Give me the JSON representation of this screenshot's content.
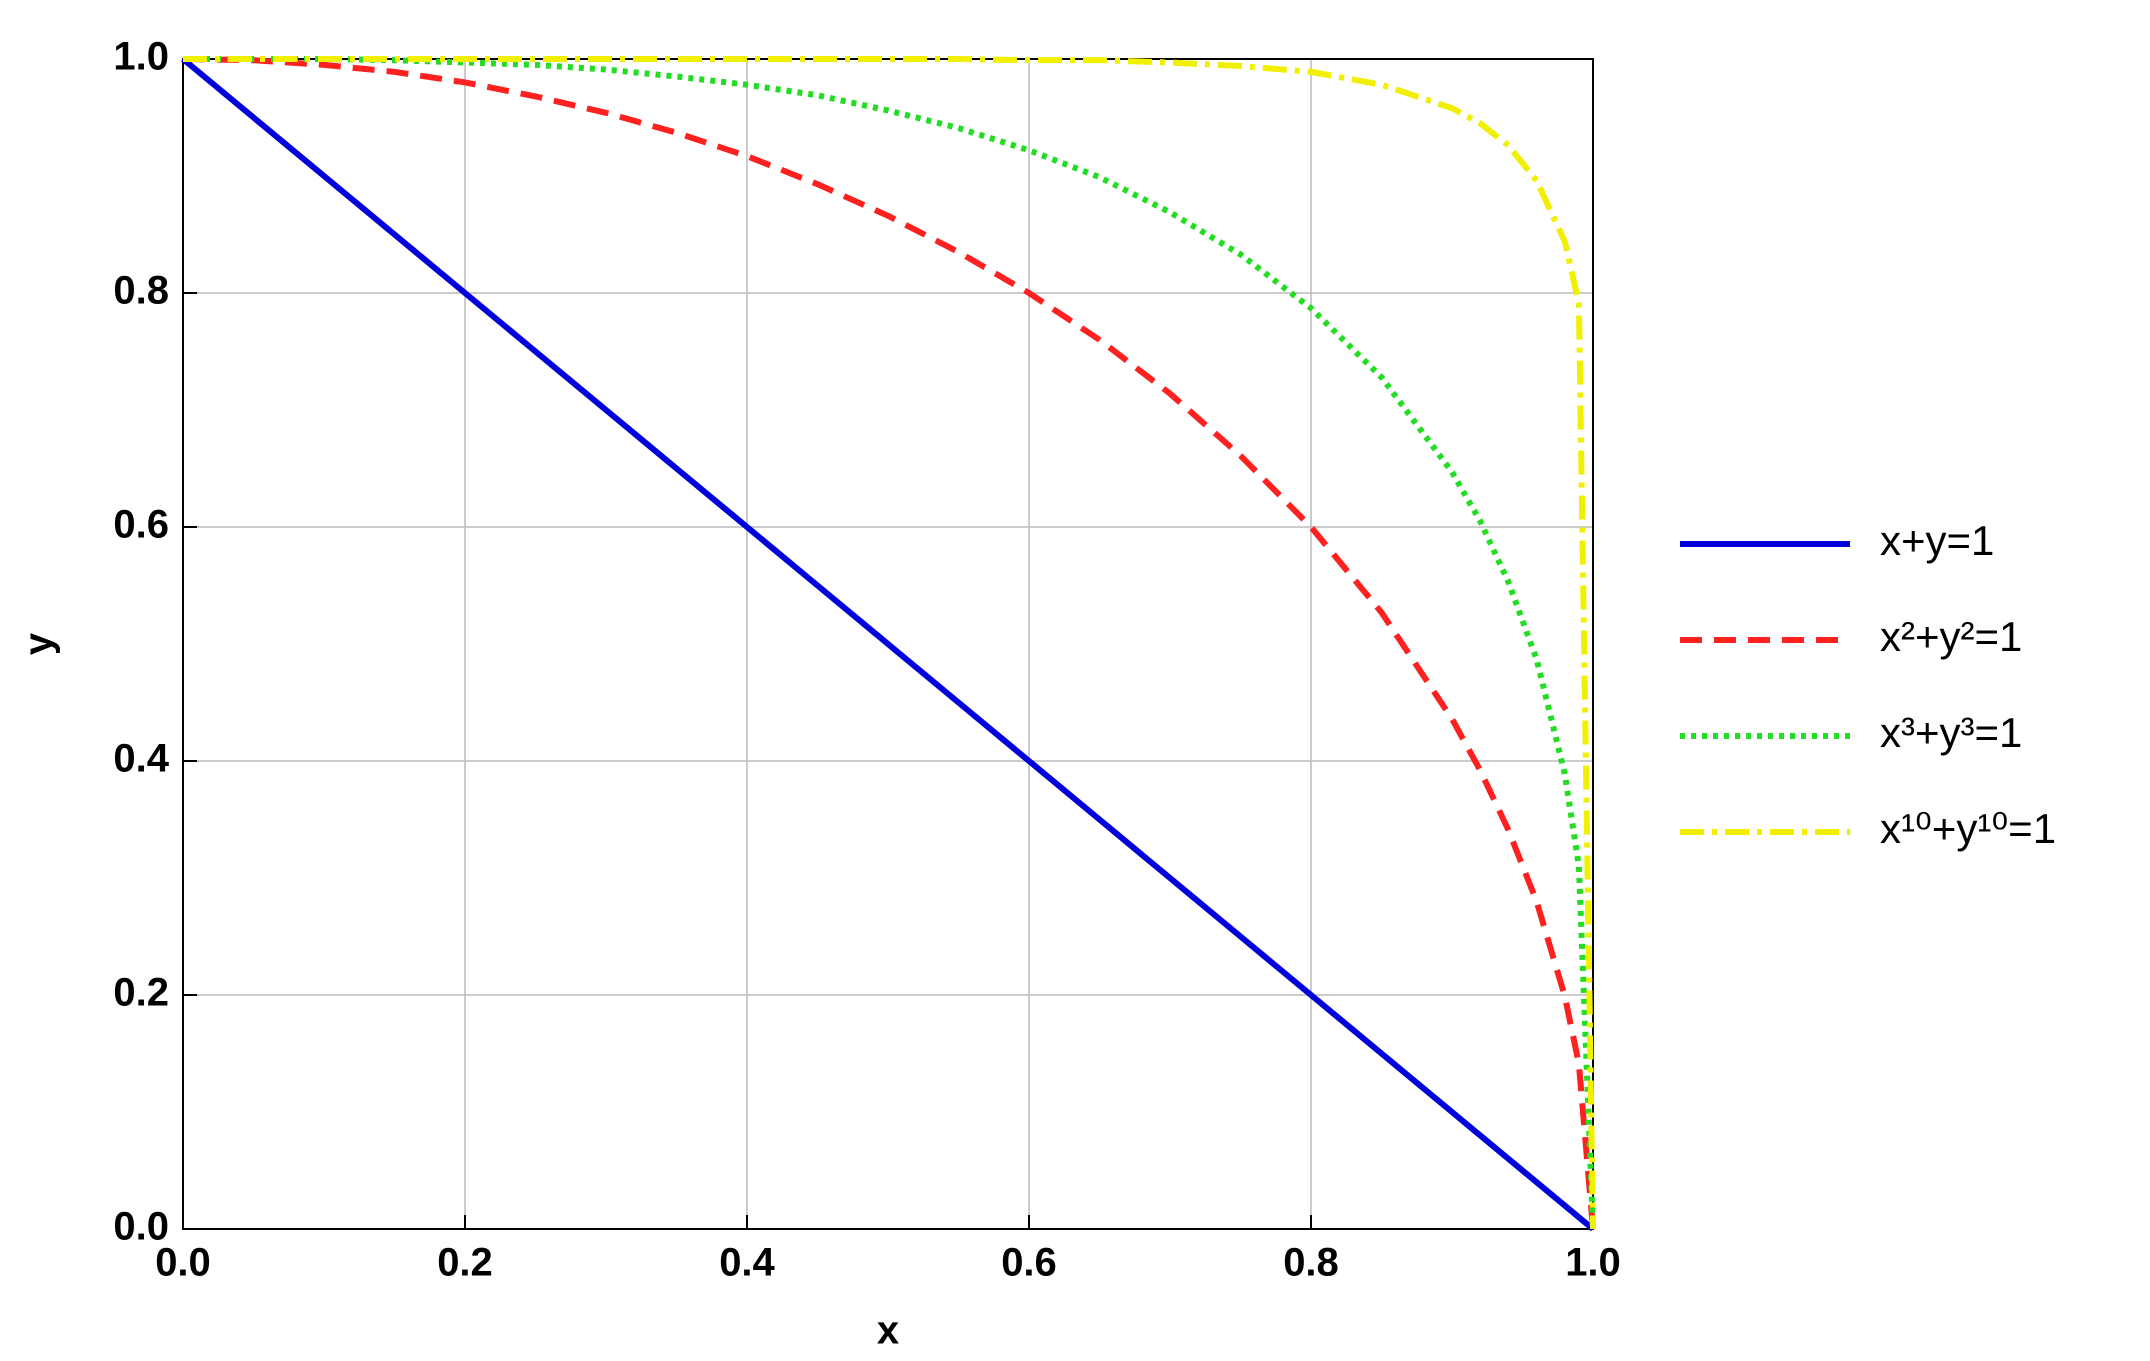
{
  "chart_data": {
    "type": "line",
    "xlabel": "x",
    "ylabel": "y",
    "x": [
      0,
      0.05,
      0.1,
      0.15,
      0.2,
      0.25,
      0.3,
      0.35,
      0.4,
      0.45,
      0.5,
      0.55,
      0.6,
      0.65,
      0.7,
      0.75,
      0.8,
      0.85,
      0.9,
      0.92,
      0.94,
      0.96,
      0.98,
      0.99,
      1
    ],
    "series": [
      {
        "name": "x+y=1",
        "color": "#0000dd",
        "style": "solid",
        "values": [
          1,
          0.95,
          0.9,
          0.85,
          0.8,
          0.75,
          0.7,
          0.65,
          0.6,
          0.55,
          0.5,
          0.45,
          0.4,
          0.35,
          0.3,
          0.25,
          0.2,
          0.15,
          0.1,
          0.08,
          0.06,
          0.04,
          0.02,
          0.01,
          0
        ]
      },
      {
        "name": "x²+y²=1",
        "color": "#ff2020",
        "style": "dashed",
        "values": [
          1,
          0.999,
          0.995,
          0.989,
          0.98,
          0.968,
          0.954,
          0.937,
          0.917,
          0.893,
          0.866,
          0.835,
          0.8,
          0.76,
          0.714,
          0.661,
          0.6,
          0.527,
          0.436,
          0.392,
          0.341,
          0.28,
          0.199,
          0.141,
          0
        ]
      },
      {
        "name": "x³+y³=1",
        "color": "#22dd22",
        "style": "dotted",
        "values": [
          1,
          1,
          1,
          0.999,
          0.997,
          0.995,
          0.991,
          0.985,
          0.978,
          0.969,
          0.956,
          0.941,
          0.922,
          0.899,
          0.869,
          0.833,
          0.787,
          0.728,
          0.647,
          0.605,
          0.553,
          0.487,
          0.389,
          0.31,
          0
        ]
      },
      {
        "name": "x¹⁰+y¹⁰=1",
        "color": "#f0f000",
        "style": "dashdot",
        "values": [
          1,
          1,
          1,
          1,
          1,
          1,
          1,
          1,
          1,
          1,
          1,
          1,
          0.999,
          0.999,
          0.997,
          0.994,
          0.989,
          0.978,
          0.958,
          0.945,
          0.926,
          0.896,
          0.844,
          0.791,
          0
        ]
      }
    ],
    "xlim": [
      0,
      1
    ],
    "ylim": [
      0,
      1
    ],
    "xticks": [
      {
        "value": 0,
        "label": "0.0"
      },
      0.2,
      0.4,
      0.6,
      0.8,
      {
        "value": 1,
        "label": "1.0"
      }
    ],
    "yticks": [
      {
        "value": 0,
        "label": "0.0"
      },
      0.2,
      0.4,
      0.6,
      0.8,
      {
        "value": 1,
        "label": "1.0"
      }
    ],
    "grid": true,
    "legend": "right"
  }
}
